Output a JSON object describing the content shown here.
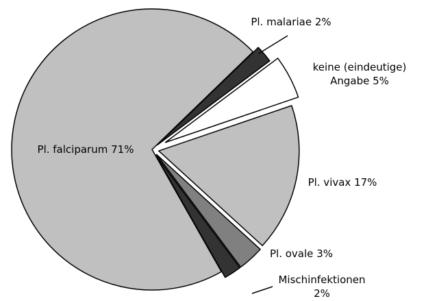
{
  "chart_data": {
    "type": "pie",
    "categories": [
      "Pl. malariae",
      "keine (eindeutige) Angabe",
      "Pl. vivax",
      "Pl. ovale",
      "Mischinfektionen",
      "Pl. falciparum"
    ],
    "values": [
      2,
      5,
      17,
      3,
      2,
      71
    ],
    "value_labels": [
      "2%",
      "5%",
      "17%",
      "3%",
      "2%",
      "71%"
    ],
    "colors": [
      "#333333",
      "#ffffff",
      "#c0c0c0",
      "#808080",
      "#333333",
      "#c0c0c0"
    ]
  }
}
